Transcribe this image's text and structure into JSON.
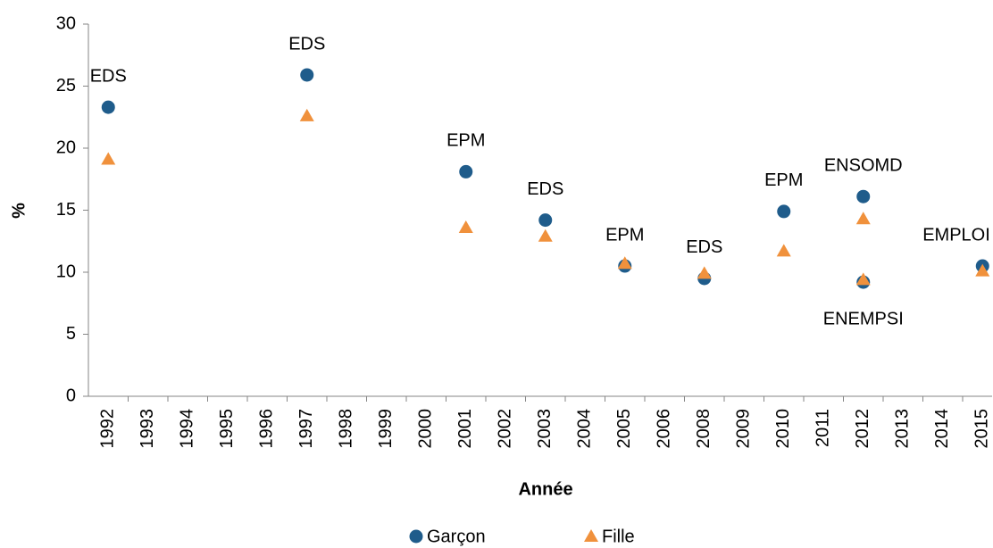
{
  "chart_data": {
    "type": "scatter",
    "y_label": "%",
    "x_label": "Année",
    "categories": [
      "1992",
      "1993",
      "1994",
      "1995",
      "1996",
      "1997",
      "1998",
      "1999",
      "2000",
      "2001",
      "2002",
      "2003",
      "2004",
      "2005",
      "2006",
      "2008",
      "2009",
      "2010",
      "2011",
      "2012",
      "2013",
      "2014",
      "2015"
    ],
    "ylim": [
      0,
      30
    ],
    "yticks": [
      0,
      5,
      10,
      15,
      20,
      25,
      30
    ],
    "series": [
      {
        "name": "Garçon",
        "color": "#1f5c8b",
        "marker": "circle",
        "x": [
          "1992",
          "1997",
          "2001",
          "2003",
          "2005",
          "2008",
          "2010",
          "2012",
          "2012",
          "2015"
        ],
        "values": [
          23.3,
          25.9,
          18.1,
          14.2,
          10.5,
          9.5,
          14.9,
          16.1,
          9.2,
          10.5
        ],
        "labels": [
          "EDS",
          "EDS",
          "EPM",
          "EDS",
          "EPM",
          "EDS",
          "EPM",
          "ENSOMD",
          "ENEMPSI",
          "EMPLOI"
        ]
      },
      {
        "name": "Fille",
        "color": "#f0913c",
        "marker": "triangle",
        "x": [
          "1992",
          "1997",
          "2001",
          "2003",
          "2005",
          "2008",
          "2010",
          "2012",
          "2012",
          "2015"
        ],
        "values": [
          19.1,
          22.6,
          13.6,
          12.9,
          10.7,
          9.9,
          11.7,
          14.3,
          9.4,
          10.1
        ]
      }
    ]
  }
}
